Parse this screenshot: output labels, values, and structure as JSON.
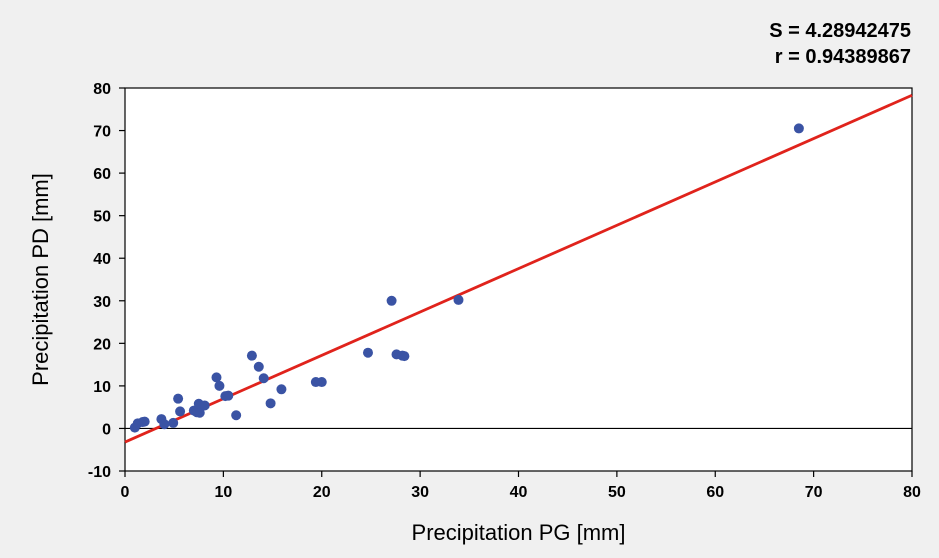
{
  "stats": {
    "s_text": "S = 4.28942475",
    "r_text": "r = 0.94389867"
  },
  "chart_data": {
    "type": "scatter",
    "title": "",
    "xlabel": "Precipitation PG [mm]",
    "ylabel": "Precipitation PD [mm]",
    "xlim": [
      0,
      80
    ],
    "ylim": [
      -10,
      80
    ],
    "x_ticks": [
      0,
      10,
      20,
      30,
      40,
      50,
      60,
      70,
      80
    ],
    "y_ticks": [
      -10,
      0,
      10,
      20,
      30,
      40,
      50,
      60,
      70,
      80
    ],
    "grid": false,
    "zero_line": true,
    "colors": {
      "points": "#3a53a4",
      "fit_line": "#e0231c",
      "background": "#f0f0f0",
      "plot_area": "#ffffff"
    },
    "series": [
      {
        "values": [
          {
            "x": 1.0,
            "y": 0.2
          },
          {
            "x": 1.3,
            "y": 1.2
          },
          {
            "x": 1.8,
            "y": 1.5
          },
          {
            "x": 2.0,
            "y": 1.6
          },
          {
            "x": 3.7,
            "y": 2.2
          },
          {
            "x": 4.0,
            "y": 1.0
          },
          {
            "x": 4.9,
            "y": 1.3
          },
          {
            "x": 5.4,
            "y": 7.0
          },
          {
            "x": 5.6,
            "y": 4.0
          },
          {
            "x": 7.0,
            "y": 4.2
          },
          {
            "x": 7.3,
            "y": 3.8
          },
          {
            "x": 7.5,
            "y": 5.8
          },
          {
            "x": 7.6,
            "y": 3.7
          },
          {
            "x": 8.1,
            "y": 5.4
          },
          {
            "x": 9.3,
            "y": 12.0
          },
          {
            "x": 9.6,
            "y": 10.0
          },
          {
            "x": 10.2,
            "y": 7.6
          },
          {
            "x": 10.5,
            "y": 7.7
          },
          {
            "x": 11.3,
            "y": 3.1
          },
          {
            "x": 12.9,
            "y": 17.1
          },
          {
            "x": 13.6,
            "y": 14.5
          },
          {
            "x": 14.1,
            "y": 11.8
          },
          {
            "x": 14.8,
            "y": 5.9
          },
          {
            "x": 15.9,
            "y": 9.2
          },
          {
            "x": 19.4,
            "y": 10.9
          },
          {
            "x": 20.0,
            "y": 10.9
          },
          {
            "x": 24.7,
            "y": 17.8
          },
          {
            "x": 27.1,
            "y": 30.0
          },
          {
            "x": 27.6,
            "y": 17.4
          },
          {
            "x": 28.2,
            "y": 17.1
          },
          {
            "x": 28.4,
            "y": 17.0
          },
          {
            "x": 33.9,
            "y": 30.2
          },
          {
            "x": 68.5,
            "y": 70.5
          }
        ]
      }
    ],
    "fit_line": {
      "x": [
        0,
        80
      ],
      "y": [
        -3.2,
        78.3
      ]
    }
  }
}
